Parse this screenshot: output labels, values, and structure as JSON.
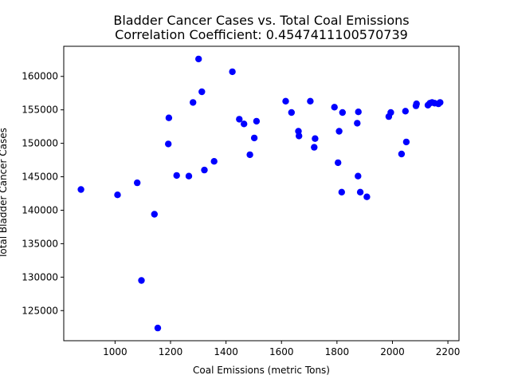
{
  "chart_data": {
    "type": "scatter",
    "title": "Bladder Cancer Cases vs. Total Coal Emissions",
    "subtitle": "Correlation Coefficient: 0.4547411100570739",
    "xlabel": "Coal Emissions (metric Tons)",
    "ylabel": "Total Bladder Cancer Cases",
    "xlim": [
      815,
      2240
    ],
    "ylim": [
      120500,
      164500
    ],
    "xticks": [
      1000,
      1200,
      1400,
      1600,
      1800,
      2000,
      2200
    ],
    "yticks": [
      125000,
      130000,
      135000,
      140000,
      145000,
      150000,
      155000,
      160000
    ],
    "grid": false,
    "marker_color": "#0000ff",
    "points": [
      [
        877,
        143100
      ],
      [
        1009,
        142300
      ],
      [
        1080,
        144100
      ],
      [
        1095,
        129500
      ],
      [
        1142,
        139400
      ],
      [
        1154,
        122400
      ],
      [
        1192,
        149900
      ],
      [
        1194,
        153800
      ],
      [
        1222,
        145200
      ],
      [
        1266,
        145100
      ],
      [
        1281,
        156100
      ],
      [
        1301,
        162600
      ],
      [
        1313,
        157700
      ],
      [
        1322,
        146000
      ],
      [
        1357,
        147300
      ],
      [
        1423,
        160700
      ],
      [
        1448,
        153600
      ],
      [
        1465,
        152900
      ],
      [
        1486,
        148300
      ],
      [
        1502,
        150800
      ],
      [
        1510,
        153300
      ],
      [
        1615,
        156300
      ],
      [
        1636,
        154600
      ],
      [
        1661,
        151800
      ],
      [
        1663,
        151100
      ],
      [
        1704,
        156300
      ],
      [
        1718,
        149400
      ],
      [
        1721,
        150700
      ],
      [
        1791,
        155400
      ],
      [
        1804,
        147100
      ],
      [
        1808,
        151800
      ],
      [
        1817,
        142700
      ],
      [
        1820,
        154600
      ],
      [
        1873,
        153000
      ],
      [
        1876,
        145100
      ],
      [
        1877,
        154700
      ],
      [
        1884,
        142700
      ],
      [
        1908,
        142000
      ],
      [
        1987,
        154000
      ],
      [
        1994,
        154600
      ],
      [
        2033,
        148400
      ],
      [
        2047,
        154800
      ],
      [
        2050,
        150200
      ],
      [
        2085,
        155600
      ],
      [
        2087,
        155900
      ],
      [
        2128,
        155700
      ],
      [
        2135,
        156000
      ],
      [
        2143,
        156100
      ],
      [
        2152,
        156000
      ],
      [
        2166,
        155900
      ],
      [
        2172,
        156100
      ]
    ]
  }
}
